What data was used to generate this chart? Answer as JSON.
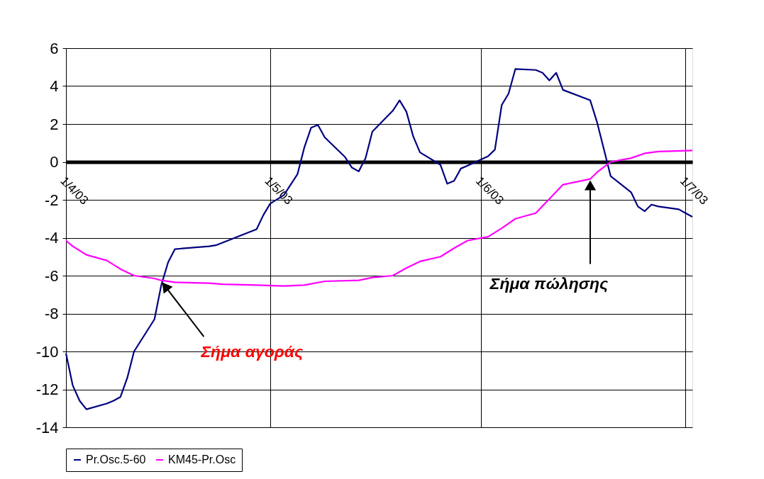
{
  "chart_data": {
    "type": "line",
    "series": [
      {
        "name": "Pr.Osc.5-60",
        "color": "#000080",
        "x": [
          "2003-04-01",
          "2003-04-02",
          "2003-04-03",
          "2003-04-04",
          "2003-04-07",
          "2003-04-08",
          "2003-04-09",
          "2003-04-10",
          "2003-04-11",
          "2003-04-14",
          "2003-04-15",
          "2003-04-16",
          "2003-04-17",
          "2003-04-22",
          "2003-04-23",
          "2003-04-29",
          "2003-04-30",
          "2003-05-01",
          "2003-05-03",
          "2003-05-05",
          "2003-05-06",
          "2003-05-07",
          "2003-05-08",
          "2003-05-09",
          "2003-05-12",
          "2003-05-13",
          "2003-05-14",
          "2003-05-15",
          "2003-05-16",
          "2003-05-19",
          "2003-05-20",
          "2003-05-21",
          "2003-05-22",
          "2003-05-23",
          "2003-05-26",
          "2003-05-27",
          "2003-05-28",
          "2003-05-29",
          "2003-05-30",
          "2003-06-02",
          "2003-06-03",
          "2003-06-04",
          "2003-06-05",
          "2003-06-06",
          "2003-06-09",
          "2003-06-10",
          "2003-06-11",
          "2003-06-12",
          "2003-06-13",
          "2003-06-17",
          "2003-06-18",
          "2003-06-20",
          "2003-06-23",
          "2003-06-24",
          "2003-06-25",
          "2003-06-26",
          "2003-06-27",
          "2003-06-30",
          "2003-07-01",
          "2003-07-02"
        ],
        "values": [
          -10.1,
          -11.8,
          -12.6,
          -13.05,
          -12.75,
          -12.6,
          -12.4,
          -11.4,
          -10.0,
          -8.3,
          -6.5,
          -5.3,
          -4.6,
          -4.45,
          -4.4,
          -3.55,
          -2.8,
          -2.2,
          -1.75,
          -0.65,
          0.75,
          1.8,
          1.95,
          1.3,
          0.25,
          -0.3,
          -0.5,
          0.2,
          1.6,
          2.7,
          3.25,
          2.65,
          1.35,
          0.5,
          -0.15,
          -1.15,
          -1.0,
          -0.35,
          -0.2,
          0.3,
          0.65,
          3.0,
          3.6,
          4.9,
          4.85,
          4.7,
          4.3,
          4.7,
          3.8,
          3.25,
          2.1,
          -0.75,
          -1.6,
          -2.35,
          -2.6,
          -2.25,
          -2.35,
          -2.5,
          -2.7,
          -2.9
        ]
      },
      {
        "name": "KM45-Pr.Osc",
        "color": "#ff00ff",
        "x": [
          "2003-04-01",
          "2003-04-02",
          "2003-04-04",
          "2003-04-07",
          "2003-04-09",
          "2003-04-11",
          "2003-04-14",
          "2003-04-15",
          "2003-04-17",
          "2003-04-22",
          "2003-04-24",
          "2003-04-29",
          "2003-05-03",
          "2003-05-06",
          "2003-05-09",
          "2003-05-14",
          "2003-05-16",
          "2003-05-19",
          "2003-05-21",
          "2003-05-23",
          "2003-05-26",
          "2003-05-28",
          "2003-05-30",
          "2003-06-02",
          "2003-06-04",
          "2003-06-06",
          "2003-06-09",
          "2003-06-11",
          "2003-06-13",
          "2003-06-17",
          "2003-06-18",
          "2003-06-20",
          "2003-06-23",
          "2003-06-25",
          "2003-06-27",
          "2003-07-02"
        ],
        "values": [
          -4.15,
          -4.45,
          -4.9,
          -5.2,
          -5.65,
          -6.0,
          -6.15,
          -6.25,
          -6.35,
          -6.4,
          -6.45,
          -6.5,
          -6.55,
          -6.5,
          -6.3,
          -6.25,
          -6.1,
          -6.0,
          -5.6,
          -5.25,
          -5.0,
          -4.55,
          -4.15,
          -3.95,
          -3.5,
          -3.0,
          -2.7,
          -1.95,
          -1.2,
          -0.9,
          -0.55,
          0.0,
          0.2,
          0.45,
          0.55,
          0.6
        ]
      }
    ],
    "xlim": [
      "2003-04-01",
      "2003-07-02"
    ],
    "xticks": [
      {
        "value": "2003-04-01",
        "label": "1/4/03"
      },
      {
        "value": "2003-05-01",
        "label": "1/5/03"
      },
      {
        "value": "2003-06-01",
        "label": "1/6/03"
      },
      {
        "value": "2003-07-01",
        "label": "1/7/03"
      }
    ],
    "ylim": [
      -14,
      6
    ],
    "yticks": [
      -14,
      -12,
      -10,
      -8,
      -6,
      -4,
      -2,
      0,
      2,
      4,
      6
    ],
    "grid": true,
    "legend": "bottom",
    "annotations": [
      {
        "text": "Σήμα αγοράς",
        "x": "2003-04-15",
        "y": -6.3
      },
      {
        "text": "Σήμα πώλησης",
        "x": "2003-06-17",
        "y": -0.9
      }
    ]
  }
}
